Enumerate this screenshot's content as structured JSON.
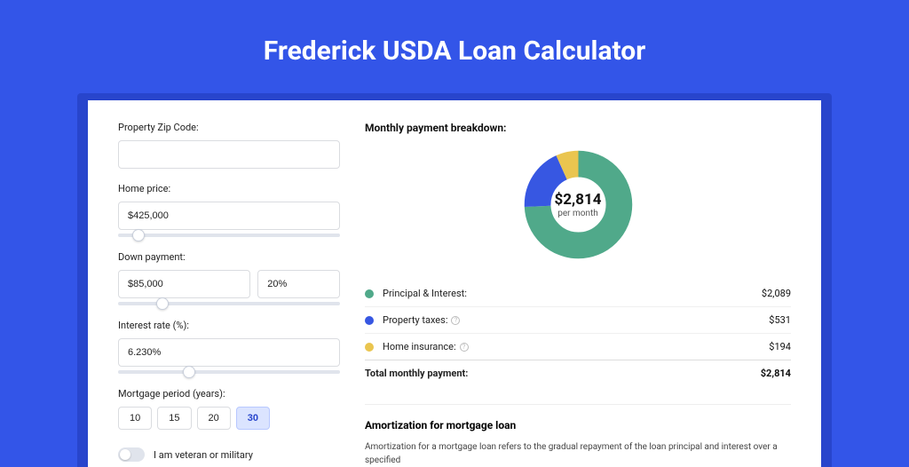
{
  "page": {
    "title": "Frederick USDA Loan Calculator",
    "background_color": "#3355e8",
    "shadow_color": "#2845cc",
    "card_bg": "#ffffff"
  },
  "form": {
    "zip": {
      "label": "Property Zip Code:",
      "value": ""
    },
    "home_price": {
      "label": "Home price:",
      "value": "$425,000",
      "slider_pos_pct": 9
    },
    "down_payment": {
      "label": "Down payment:",
      "amount": "$85,000",
      "percent": "20%",
      "slider_pos_pct": 20
    },
    "interest_rate": {
      "label": "Interest rate (%):",
      "value": "6.230%",
      "slider_pos_pct": 32
    },
    "mortgage_period": {
      "label": "Mortgage period (years):",
      "options": [
        "10",
        "15",
        "20",
        "30"
      ],
      "active_index": 3
    },
    "veteran": {
      "label": "I am veteran or military",
      "checked": false
    }
  },
  "breakdown": {
    "title": "Monthly payment breakdown:",
    "donut": {
      "center_value": "$2,814",
      "center_sub": "per month",
      "slices": [
        {
          "name": "principal_interest",
          "value": 2089,
          "pct": 74.2,
          "color": "#50a98a"
        },
        {
          "name": "property_taxes",
          "value": 531,
          "pct": 18.9,
          "color": "#3757e2"
        },
        {
          "name": "home_insurance",
          "value": 194,
          "pct": 6.9,
          "color": "#eac54f"
        }
      ],
      "stroke_width": 22
    },
    "items": [
      {
        "dot_color": "#50a98a",
        "label": "Principal & Interest:",
        "info": false,
        "value": "$2,089"
      },
      {
        "dot_color": "#3757e2",
        "label": "Property taxes:",
        "info": true,
        "value": "$531"
      },
      {
        "dot_color": "#eac54f",
        "label": "Home insurance:",
        "info": true,
        "value": "$194"
      }
    ],
    "total": {
      "label": "Total monthly payment:",
      "value": "$2,814"
    }
  },
  "amortization": {
    "title": "Amortization for mortgage loan",
    "body": "Amortization for a mortgage loan refers to the gradual repayment of the loan principal and interest over a specified"
  }
}
